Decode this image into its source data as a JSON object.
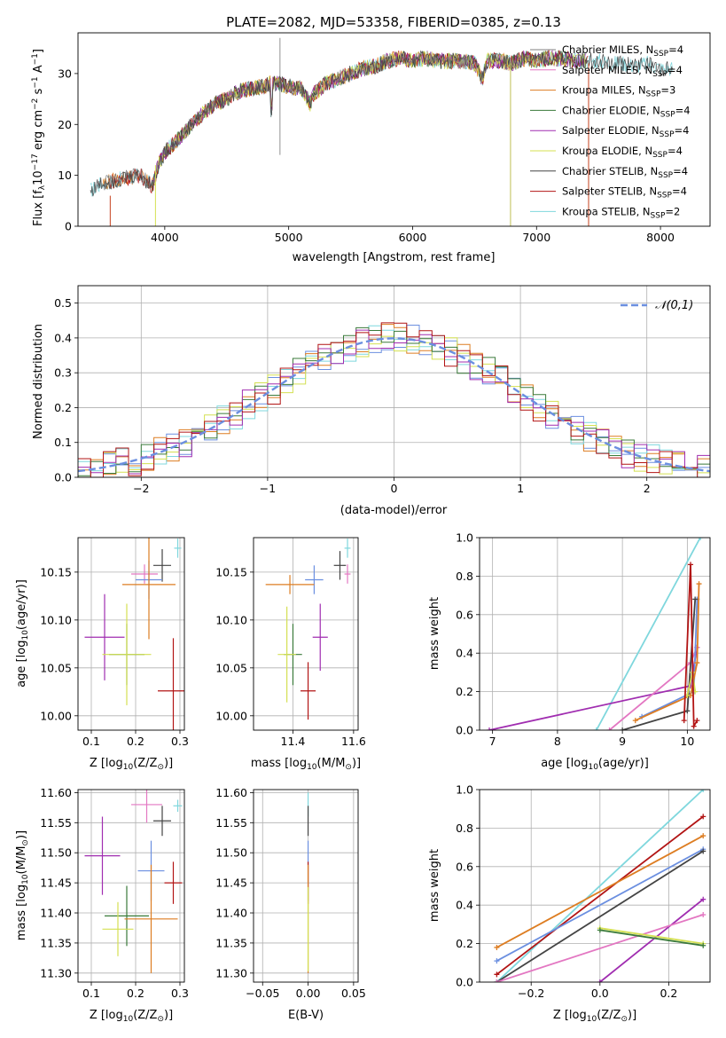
{
  "colors": {
    "Chabrier MILES": "#7f7f7f",
    "Salpeter MILES": "#e377c2",
    "Kroupa MILES": "#dd7d22",
    "Chabrier ELODIE": "#3a7a3a",
    "Salpeter ELODIE": "#a02db0",
    "Kroupa ELODIE": "#d4e052",
    "Chabrier STELIB": "#444444",
    "Salpeter STELIB": "#b21414",
    "Kroupa STELIB": "#7fd7dd",
    "Chabrier MILES alt": "#6b8fe0",
    "normal": "#6b8fe0"
  },
  "chart_data": [
    {
      "id": "spectrum",
      "type": "line",
      "title": "PLATE=2082, MJD=53358, FIBERID=0385, z=0.13",
      "xlabel": "wavelength [Angstrom, rest frame]",
      "ylabel_main": "Flux [f",
      "ylabel_sub": "λ",
      "ylabel_rest": "10",
      "ylabel_exp": "−17",
      "ylabel_tail": " erg cm",
      "ylabel_exp2": "−2",
      "ylabel_tail2": " s",
      "ylabel_exp3": "−1",
      "ylabel_tail3": " A",
      "ylabel_exp4": "−1",
      "ylabel_end": "]",
      "xlim": [
        3300,
        8400
      ],
      "ylim": [
        0,
        38
      ],
      "xticks": [
        4000,
        5000,
        6000,
        7000,
        8000
      ],
      "yticks": [
        0,
        10,
        20,
        30
      ],
      "x": [
        3400,
        3500,
        3600,
        3700,
        3800,
        3850,
        3900,
        3950,
        4000,
        4100,
        4200,
        4300,
        4400,
        4500,
        4600,
        4700,
        4800,
        4850,
        4900,
        5000,
        5100,
        5175,
        5200,
        5300,
        5400,
        5500,
        5600,
        5700,
        5800,
        5900,
        6000,
        6100,
        6200,
        6300,
        6400,
        6500,
        6563,
        6600,
        6700,
        6800,
        6900,
        7000,
        7100,
        7200,
        7300,
        7400,
        7500,
        7600,
        7700,
        7800,
        7900,
        8000,
        8100
      ],
      "y": [
        7,
        8.5,
        9,
        9.5,
        10,
        9,
        8,
        12,
        14.5,
        17,
        19.5,
        22,
        24,
        25,
        26.5,
        27,
        27.5,
        28,
        28,
        27.5,
        27,
        24,
        26,
        28,
        29,
        30,
        31,
        31.5,
        32.5,
        33,
        32.5,
        33,
        32.5,
        32.5,
        32.5,
        32,
        29,
        32.5,
        32.5,
        32,
        33,
        32.5,
        33,
        33,
        32.5,
        32.5,
        32.5,
        32,
        32,
        31.5,
        32,
        31,
        31
      ],
      "series": [
        {
          "name": "Chabrier MILES",
          "label_pre": "Chabrier MILES, N",
          "label_sub": "SSP",
          "label_post": "=4"
        },
        {
          "name": "Salpeter MILES",
          "label_pre": "Salpeter MILES, N",
          "label_sub": "SSP",
          "label_post": "=4"
        },
        {
          "name": "Kroupa MILES",
          "label_pre": "Kroupa MILES, N",
          "label_sub": "SSP",
          "label_post": "=3"
        },
        {
          "name": "Chabrier ELODIE",
          "label_pre": "Chabrier ELODIE, N",
          "label_sub": "SSP",
          "label_post": "=4"
        },
        {
          "name": "Salpeter ELODIE",
          "label_pre": "Salpeter ELODIE, N",
          "label_sub": "SSP",
          "label_post": "=4"
        },
        {
          "name": "Kroupa ELODIE",
          "label_pre": "Kroupa ELODIE, N",
          "label_sub": "SSP",
          "label_post": "=4"
        },
        {
          "name": "Chabrier STELIB",
          "label_pre": "Chabrier STELIB, N",
          "label_sub": "SSP",
          "label_post": "=4"
        },
        {
          "name": "Salpeter STELIB",
          "label_pre": "Salpeter STELIB, N",
          "label_sub": "SSP",
          "label_post": "=4"
        },
        {
          "name": "Kroupa STELIB",
          "label_pre": "Kroupa STELIB, N",
          "label_sub": "SSP",
          "label_post": "=2"
        }
      ],
      "legend": "top-right",
      "grid": false
    },
    {
      "id": "residuals",
      "type": "step histogram",
      "xlabel": "(data-model)/error",
      "ylabel": "Normed distribution",
      "xlim": [
        -2.5,
        2.5
      ],
      "ylim": [
        0,
        0.55
      ],
      "xticks": [
        -2,
        -1,
        0,
        1,
        2
      ],
      "yticks": [
        0.0,
        0.1,
        0.2,
        0.3,
        0.4,
        0.5
      ],
      "bin_width": 0.1,
      "bins_start": -2.5,
      "reference": {
        "name": "𝒩(0,1)",
        "mean": 0,
        "sigma": 1
      },
      "legend": "top-right",
      "grid": true
    },
    {
      "id": "age_vs_Z",
      "type": "error bars",
      "xlabel": "Z [log",
      "xlabel_sub": "10",
      "xlabel_rest": "(Z/Z",
      "xlabel_sun": "⊙",
      "xlabel_end": ")]",
      "ylabel": "age  [log",
      "ylabel_sub": "10",
      "ylabel_rest": "(age/yr)]",
      "xlim": [
        0.07,
        0.31
      ],
      "ylim": [
        9.985,
        10.186
      ],
      "xticks": [
        0.1,
        0.2,
        0.3
      ],
      "yticks": [
        10.0,
        10.05,
        10.1,
        10.15
      ],
      "points": [
        {
          "series": "Chabrier STELIB",
          "x": 0.26,
          "y": 10.157,
          "xerr": 0.02,
          "yerr": 0.017
        },
        {
          "series": "Kroupa STELIB",
          "x": 0.295,
          "y": 10.175,
          "xerr": 0.008,
          "yerr": 0.01
        },
        {
          "series": "Salpeter MILES",
          "x": 0.22,
          "y": 10.148,
          "xerr": 0.03,
          "yerr": 0.01
        },
        {
          "series": "Chabrier MILES alt",
          "x": 0.23,
          "y": 10.142,
          "xerr": 0.03,
          "yerr": 0.02
        },
        {
          "series": "Kroupa MILES",
          "x": 0.23,
          "y": 10.137,
          "xerr": 0.06,
          "yerr": 0.057
        },
        {
          "series": "Salpeter ELODIE",
          "x": 0.13,
          "y": 10.082,
          "xerr": 0.045,
          "yerr": 0.045
        },
        {
          "series": "Chabrier ELODIE",
          "x": 0.18,
          "y": 10.064,
          "xerr": 0.04,
          "yerr": 0.032
        },
        {
          "series": "Kroupa ELODIE",
          "x": 0.18,
          "y": 10.064,
          "xerr": 0.055,
          "yerr": 0.053
        },
        {
          "series": "Salpeter STELIB",
          "x": 0.285,
          "y": 10.026,
          "xerr": 0.035,
          "yerr": 0.055
        }
      ],
      "grid": true
    },
    {
      "id": "age_vs_mass",
      "type": "error bars",
      "xlabel": "mass [log",
      "xlabel_sub": "10",
      "xlabel_rest": "(M/M",
      "xlabel_sun": "⊙",
      "xlabel_end": ")]",
      "xlim": [
        11.27,
        11.615
      ],
      "ylim": [
        9.985,
        10.186
      ],
      "xticks": [
        11.4,
        11.6
      ],
      "yticks": [
        10.0,
        10.05,
        10.1,
        10.15
      ],
      "points": [
        {
          "series": "Chabrier STELIB",
          "x": 11.555,
          "y": 10.157,
          "xerr": 0.02,
          "yerr": 0.015
        },
        {
          "series": "Kroupa STELIB",
          "x": 11.58,
          "y": 10.175,
          "xerr": 0.01,
          "yerr": 0.01
        },
        {
          "series": "Salpeter MILES",
          "x": 11.58,
          "y": 10.148,
          "xerr": 0.01,
          "yerr": 0.01
        },
        {
          "series": "Chabrier MILES alt",
          "x": 11.47,
          "y": 10.142,
          "xerr": 0.03,
          "yerr": 0.015
        },
        {
          "series": "Kroupa MILES",
          "x": 11.39,
          "y": 10.137,
          "xerr": 0.08,
          "yerr": 0.01
        },
        {
          "series": "Salpeter ELODIE",
          "x": 11.49,
          "y": 10.082,
          "xerr": 0.025,
          "yerr": 0.035
        },
        {
          "series": "Chabrier ELODIE",
          "x": 11.4,
          "y": 10.064,
          "xerr": 0.03,
          "yerr": 0.032
        },
        {
          "series": "Kroupa ELODIE",
          "x": 11.38,
          "y": 10.064,
          "xerr": 0.03,
          "yerr": 0.05
        },
        {
          "series": "Salpeter STELIB",
          "x": 11.45,
          "y": 10.026,
          "xerr": 0.025,
          "yerr": 0.03
        }
      ],
      "grid": true
    },
    {
      "id": "massweight_vs_age",
      "type": "line",
      "xlabel": "age  [log",
      "xlabel_sub": "10",
      "xlabel_rest": "(age/yr)]",
      "ylabel": "mass weight",
      "xlim": [
        6.8,
        10.35
      ],
      "ylim": [
        0,
        1.0
      ],
      "xticks": [
        7,
        8,
        9,
        10
      ],
      "yticks": [
        0.0,
        0.2,
        0.4,
        0.6,
        0.8,
        1.0
      ],
      "lines": [
        {
          "series": "Kroupa STELIB",
          "x": [
            8.6,
            10.2
          ],
          "y": [
            0.0,
            1.0
          ]
        },
        {
          "series": "Salpeter ELODIE",
          "x": [
            6.95,
            10.05,
            10.15
          ],
          "y": [
            0.0,
            0.23,
            0.43
          ]
        },
        {
          "series": "Salpeter MILES",
          "x": [
            8.8,
            10.05,
            10.15
          ],
          "y": [
            0.0,
            0.35,
            0.43
          ]
        },
        {
          "series": "Chabrier MILES alt",
          "x": [
            9.3,
            10.1,
            10.15
          ],
          "y": [
            0.07,
            0.2,
            0.68
          ]
        },
        {
          "series": "Kroupa MILES",
          "x": [
            9.2,
            10.05,
            10.15,
            10.18
          ],
          "y": [
            0.05,
            0.18,
            0.35,
            0.76
          ]
        },
        {
          "series": "Chabrier STELIB",
          "x": [
            9.0,
            10.0,
            10.12
          ],
          "y": [
            0.0,
            0.1,
            0.68
          ]
        },
        {
          "series": "Kroupa ELODIE",
          "x": [
            10.0,
            10.08,
            10.12
          ],
          "y": [
            0.18,
            0.3,
            0.2
          ]
        },
        {
          "series": "Salpeter STELIB",
          "x": [
            9.95,
            10.05,
            10.1,
            10.15
          ],
          "y": [
            0.05,
            0.86,
            0.02,
            0.05
          ]
        }
      ],
      "grid": true
    },
    {
      "id": "mass_vs_Z",
      "type": "error bars",
      "xlabel": "Z [log",
      "xlabel_sub": "10",
      "xlabel_rest": "(Z/Z",
      "xlabel_sun": "⊙",
      "xlabel_end": ")]",
      "ylabel": "mass [log",
      "ylabel_sub": "10",
      "ylabel_rest": "(M/M",
      "ylabel_sun": "⊙",
      "ylabel_end": ")]",
      "xlim": [
        0.07,
        0.31
      ],
      "ylim": [
        11.285,
        11.605
      ],
      "xticks": [
        0.1,
        0.2,
        0.3
      ],
      "yticks": [
        11.3,
        11.35,
        11.4,
        11.45,
        11.5,
        11.55,
        11.6
      ],
      "points": [
        {
          "series": "Salpeter MILES",
          "x": 0.225,
          "y": 11.58,
          "xerr": 0.035,
          "yerr": 0.03
        },
        {
          "series": "Kroupa STELIB",
          "x": 0.295,
          "y": 11.578,
          "xerr": 0.01,
          "yerr": 0.01
        },
        {
          "series": "Chabrier STELIB",
          "x": 0.26,
          "y": 11.553,
          "xerr": 0.02,
          "yerr": 0.025
        },
        {
          "series": "Salpeter ELODIE",
          "x": 0.125,
          "y": 11.495,
          "xerr": 0.04,
          "yerr": 0.065
        },
        {
          "series": "Chabrier MILES alt",
          "x": 0.235,
          "y": 11.47,
          "xerr": 0.03,
          "yerr": 0.05
        },
        {
          "series": "Salpeter STELIB",
          "x": 0.285,
          "y": 11.45,
          "xerr": 0.02,
          "yerr": 0.035
        },
        {
          "series": "Chabrier ELODIE",
          "x": 0.18,
          "y": 11.395,
          "xerr": 0.05,
          "yerr": 0.05
        },
        {
          "series": "Kroupa MILES",
          "x": 0.235,
          "y": 11.39,
          "xerr": 0.06,
          "yerr": 0.09
        },
        {
          "series": "Kroupa ELODIE",
          "x": 0.16,
          "y": 11.373,
          "xerr": 0.035,
          "yerr": 0.045
        }
      ],
      "grid": true
    },
    {
      "id": "mass_vs_ebv",
      "type": "error bars",
      "xlabel": "E(B-V)",
      "xlim": [
        -0.06,
        0.055
      ],
      "ylim": [
        11.285,
        11.605
      ],
      "xticks": [
        -0.05,
        0.0,
        0.05
      ],
      "xtick_labels": [
        "−0.05",
        "0.00",
        "0.05"
      ],
      "yticks": [
        11.3,
        11.35,
        11.4,
        11.45,
        11.5,
        11.55,
        11.6
      ],
      "points": [
        {
          "series": "Kroupa STELIB",
          "x": 0,
          "y": 11.58,
          "xerr": 0,
          "yerr": 0.02
        },
        {
          "series": "Chabrier STELIB",
          "x": 0,
          "y": 11.553,
          "xerr": 0,
          "yerr": 0.025
        },
        {
          "series": "Chabrier MILES alt",
          "x": 0,
          "y": 11.47,
          "xerr": 0,
          "yerr": 0.05
        },
        {
          "series": "Salpeter STELIB",
          "x": 0,
          "y": 11.45,
          "xerr": 0,
          "yerr": 0.035
        },
        {
          "series": "Kroupa MILES",
          "x": 0,
          "y": 11.39,
          "xerr": 0,
          "yerr": 0.09
        },
        {
          "series": "Kroupa ELODIE",
          "x": 0,
          "y": 11.373,
          "xerr": 0,
          "yerr": 0.07
        }
      ],
      "grid": true
    },
    {
      "id": "massweight_vs_Z",
      "type": "line",
      "xlabel": "Z [log",
      "xlabel_sub": "10",
      "xlabel_rest": "(Z/Z",
      "xlabel_sun": "⊙",
      "xlabel_end": ")]",
      "ylabel": "mass weight",
      "xlim": [
        -0.35,
        0.32
      ],
      "ylim": [
        0,
        1.0
      ],
      "xticks": [
        -0.2,
        0.0,
        0.2
      ],
      "xtick_labels": [
        "−0.2",
        "0.0",
        "0.2"
      ],
      "yticks": [
        0.0,
        0.2,
        0.4,
        0.6,
        0.8,
        1.0
      ],
      "lines": [
        {
          "series": "Kroupa STELIB",
          "x": [
            -0.3,
            0.3
          ],
          "y": [
            0.0,
            1.0
          ]
        },
        {
          "series": "Salpeter STELIB",
          "x": [
            -0.3,
            0.3
          ],
          "y": [
            0.04,
            0.86
          ]
        },
        {
          "series": "Kroupa MILES",
          "x": [
            -0.3,
            0.3
          ],
          "y": [
            0.18,
            0.76
          ]
        },
        {
          "series": "Chabrier MILES alt",
          "x": [
            -0.3,
            0.3
          ],
          "y": [
            0.11,
            0.69
          ]
        },
        {
          "series": "Chabrier STELIB",
          "x": [
            -0.3,
            0.3
          ],
          "y": [
            0.0,
            0.68
          ]
        },
        {
          "series": "Salpeter ELODIE",
          "x": [
            0.0,
            0.3
          ],
          "y": [
            0.0,
            0.43
          ]
        },
        {
          "series": "Salpeter MILES",
          "x": [
            -0.3,
            0.3
          ],
          "y": [
            0.0,
            0.35
          ]
        },
        {
          "series": "Kroupa ELODIE",
          "x": [
            0.0,
            0.3
          ],
          "y": [
            0.28,
            0.2
          ]
        },
        {
          "series": "Chabrier ELODIE",
          "x": [
            0.0,
            0.3
          ],
          "y": [
            0.27,
            0.19
          ]
        }
      ],
      "grid": true
    }
  ]
}
